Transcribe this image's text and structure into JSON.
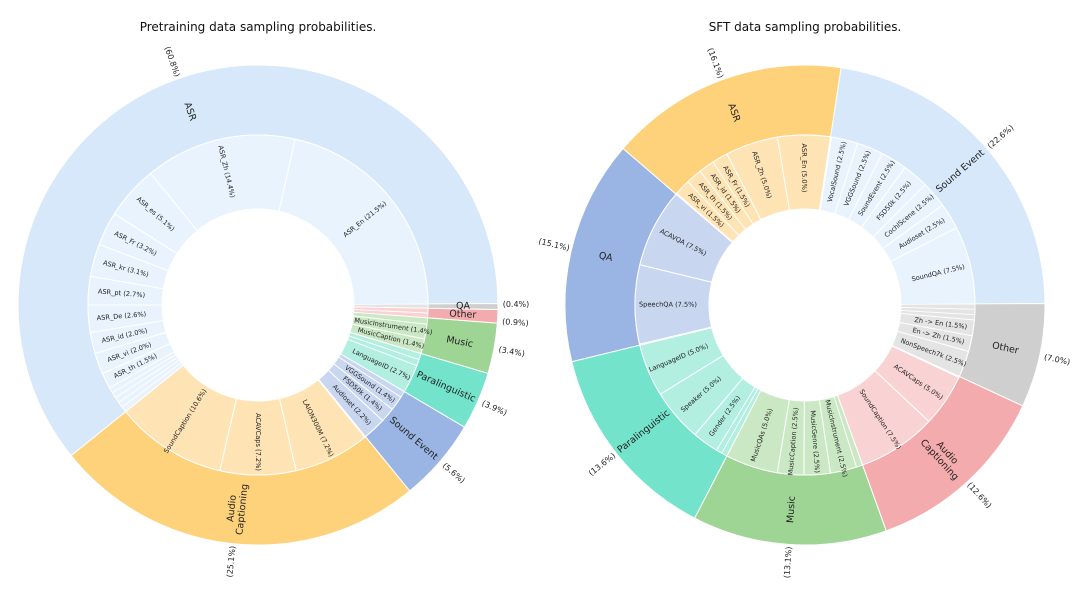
{
  "chart_data": [
    {
      "type": "sunburst",
      "title": "Pretraining data sampling probabilities.",
      "categories": [
        {
          "name": "ASR",
          "value": 60.8,
          "color": "#d6e8fa",
          "inner_color": "#e8f3fd",
          "children": [
            {
              "name": "ASR_En",
              "value": 21.5
            },
            {
              "name": "ASR_Zh",
              "value": 14.4
            },
            {
              "name": "ASR_es",
              "value": 5.1
            },
            {
              "name": "ASR_Fr",
              "value": 3.2
            },
            {
              "name": "ASR_kr",
              "value": 3.1
            },
            {
              "name": "ASR_pt",
              "value": 2.7
            },
            {
              "name": "ASR_De",
              "value": 2.6
            },
            {
              "name": "ASR_id",
              "value": 2.0
            },
            {
              "name": "ASR_vi",
              "value": 2.0
            },
            {
              "name": "ASR_th",
              "value": 1.5
            }
          ]
        },
        {
          "name": "Audio Captioning",
          "value": 25.1,
          "color": "#fed27a",
          "inner_color": "#fee4b4",
          "children": [
            {
              "name": "SoundCaption",
              "value": 10.6
            },
            {
              "name": "ACAVCaps",
              "value": 7.2
            },
            {
              "name": "LAION300M",
              "value": 7.2
            }
          ]
        },
        {
          "name": "Sound Event",
          "value": 5.6,
          "color": "#9ab4e3",
          "inner_color": "#c8d6f0",
          "children": [
            {
              "name": "Audioset",
              "value": 2.2
            },
            {
              "name": "FSD50k",
              "value": 1.4
            },
            {
              "name": "VGGSound",
              "value": 1.4
            }
          ]
        },
        {
          "name": "Paralinguistic",
          "value": 3.9,
          "color": "#74e3cb",
          "inner_color": "#b2efe0",
          "children": [
            {
              "name": "LanguageID",
              "value": 2.7
            }
          ]
        },
        {
          "name": "Music",
          "value": 3.4,
          "color": "#9ed594",
          "inner_color": "#cbe8c4",
          "children": [
            {
              "name": "MusicCaption",
              "value": 1.4
            },
            {
              "name": "MusicInstrument",
              "value": 1.4
            }
          ]
        },
        {
          "name": "Other",
          "value": 0.9,
          "color": "#f4abad",
          "inner_color": "#f9d3d4",
          "children": []
        },
        {
          "name": "QA",
          "value": 0.4,
          "color": "#cfcfcf",
          "inner_color": "#e4e4e4",
          "children": []
        }
      ]
    },
    {
      "type": "sunburst",
      "title": "SFT data sampling probabilities.",
      "categories": [
        {
          "name": "Sound Event",
          "value": 22.6,
          "color": "#d6e8fa",
          "inner_color": "#e8f3fd",
          "children": [
            {
              "name": "SoundQA",
              "value": 7.5
            },
            {
              "name": "Audioset",
              "value": 2.5
            },
            {
              "name": "CochlScene",
              "value": 2.5
            },
            {
              "name": "FSD50k",
              "value": 2.5
            },
            {
              "name": "SoundEvent",
              "value": 2.5
            },
            {
              "name": "VGGSound",
              "value": 2.5
            },
            {
              "name": "VocalSound",
              "value": 2.5
            }
          ]
        },
        {
          "name": "ASR",
          "value": 16.1,
          "color": "#fed27a",
          "inner_color": "#fee4b4",
          "children": [
            {
              "name": "ASR_En",
              "value": 5.0
            },
            {
              "name": "ASR_Zh",
              "value": 5.0
            },
            {
              "name": "ASR_Fr",
              "value": 1.5
            },
            {
              "name": "ASR_id",
              "value": 1.5
            },
            {
              "name": "ASR_th",
              "value": 1.5
            },
            {
              "name": "ASR_vi",
              "value": 1.5
            }
          ]
        },
        {
          "name": "QA",
          "value": 15.1,
          "color": "#9ab4e3",
          "inner_color": "#c8d6f0",
          "children": [
            {
              "name": "ACAVQA",
              "value": 7.5
            },
            {
              "name": "SpeechQA",
              "value": 7.5
            }
          ]
        },
        {
          "name": "Paralinguistic",
          "value": 13.6,
          "color": "#74e3cb",
          "inner_color": "#b2efe0",
          "children": [
            {
              "name": "LanguageID",
              "value": 5.0
            },
            {
              "name": "Speaker",
              "value": 5.0
            },
            {
              "name": "Gender",
              "value": 2.5
            }
          ]
        },
        {
          "name": "Music",
          "value": 13.1,
          "color": "#9ed594",
          "inner_color": "#cbe8c4",
          "children": [
            {
              "name": "MusicQAs",
              "value": 5.0
            },
            {
              "name": "MusicCaption",
              "value": 2.5
            },
            {
              "name": "MusicGenre",
              "value": 2.5
            },
            {
              "name": "MusicInstrument",
              "value": 2.5
            }
          ]
        },
        {
          "name": "Audio Captioning",
          "value": 12.6,
          "color": "#f4abad",
          "inner_color": "#f9d3d4",
          "children": [
            {
              "name": "SoundCaption",
              "value": 7.5
            },
            {
              "name": "ACAVCaps",
              "value": 5.0
            }
          ]
        },
        {
          "name": "Other",
          "value": 7.0,
          "color": "#cfcfcf",
          "inner_color": "#e4e4e4",
          "children": [
            {
              "name": "NonSpeech7k",
              "value": 2.5
            },
            {
              "name": "En -> Zh",
              "value": 1.5
            },
            {
              "name": "Zh -> En",
              "value": 1.5
            }
          ]
        }
      ]
    }
  ]
}
